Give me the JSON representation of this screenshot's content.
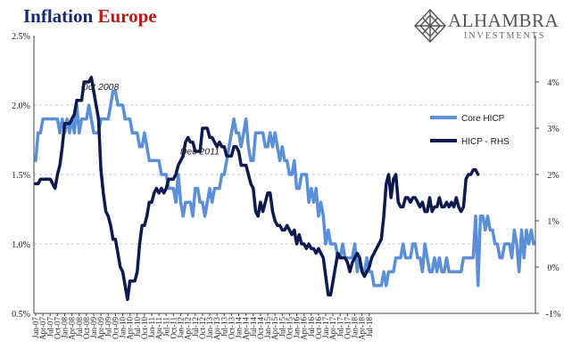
{
  "header": {
    "title_part1": "Inflation",
    "title_part2": "Europe",
    "title_color1": "#1a2a6c",
    "title_color2": "#c01818"
  },
  "logo": {
    "name": "ALHAMBRA",
    "subtitle": "INVESTMENTS",
    "icon": "diamond-lattice-icon"
  },
  "chart_data": {
    "type": "line",
    "title": "Inflation Europe",
    "x_range": [
      "2007-01",
      "2018-09"
    ],
    "x_tick_labels": [
      "Jan-07",
      "Apr-07",
      "Jul-07",
      "Oct-07",
      "Jan-08",
      "Apr-08",
      "Jul-08",
      "Oct-08",
      "Jan-09",
      "Apr-09",
      "Jul-09",
      "Oct-09",
      "Jan-10",
      "Apr-10",
      "Jul-10",
      "Oct-10",
      "Jan-11",
      "Apr-11",
      "Jul-11",
      "Oct-11",
      "Jan-12",
      "Apr-12",
      "Jul-12",
      "Oct-12",
      "Jan-13",
      "Apr-13",
      "Jul-13",
      "Oct-13",
      "Jan-14",
      "Apr-14",
      "Jul-14",
      "Oct-14",
      "Jan-15",
      "Apr-15",
      "Jul-15",
      "Oct-15",
      "Jan-16",
      "Apr-16",
      "Jul-16",
      "Oct-16",
      "Jan-17",
      "Apr-17",
      "Jul-17",
      "Oct-17",
      "Jan-18",
      "Apr-18",
      "Jul-18"
    ],
    "y_left": {
      "min": 0.5,
      "max": 2.5,
      "ticks": [
        "0.5%",
        "1.0%",
        "1.5%",
        "2.0%",
        "2.5%"
      ]
    },
    "y_right": {
      "min": -1,
      "max": 5,
      "ticks": [
        "-1%",
        "0%",
        "1%",
        "2%",
        "3%",
        "4%"
      ]
    },
    "grid": "horizontal dashed",
    "legend_position": "right",
    "annotations": [
      {
        "text": "Oct 2008",
        "x": "2008-07"
      },
      {
        "text": "Dec 2011",
        "x": "2011-12"
      }
    ],
    "series": [
      {
        "name": "Core HICP",
        "axis": "left",
        "color": "#5b8fd8",
        "values": [
          1.6,
          1.8,
          1.8,
          1.9,
          1.9,
          1.9,
          1.9,
          1.9,
          1.9,
          1.9,
          1.8,
          1.9,
          1.8,
          1.9,
          1.8,
          1.9,
          1.8,
          2.0,
          1.8,
          1.9,
          1.9,
          1.9,
          2.0,
          1.9,
          1.8,
          1.8,
          1.8,
          1.9,
          1.9,
          1.9,
          1.9,
          2.0,
          2.1,
          2.1,
          2.0,
          2.0,
          2.0,
          1.9,
          1.9,
          1.9,
          1.8,
          1.8,
          1.8,
          1.7,
          1.7,
          1.8,
          1.7,
          1.6,
          1.6,
          1.6,
          1.6,
          1.6,
          1.5,
          1.5,
          1.5,
          1.4,
          1.4,
          1.4,
          1.3,
          1.5,
          1.3,
          1.2,
          1.3,
          1.3,
          1.3,
          1.2,
          1.4,
          1.4,
          1.3,
          1.3,
          1.2,
          1.3,
          1.4,
          1.3,
          1.4,
          1.4,
          1.4,
          1.5,
          1.5,
          1.6,
          1.7,
          1.8,
          1.9,
          1.8,
          1.8,
          1.7,
          1.8,
          1.9,
          1.7,
          1.6,
          1.6,
          1.8,
          1.8,
          1.8,
          1.8,
          1.7,
          1.7,
          1.8,
          1.7,
          1.8,
          1.7,
          1.6,
          1.7,
          1.6,
          1.6,
          1.5,
          1.5,
          1.6,
          1.4,
          1.4,
          1.5,
          1.5,
          1.5,
          1.3,
          1.4,
          1.3,
          1.4,
          1.2,
          1.3,
          1.2,
          1.0,
          1.1,
          1.0,
          1.0,
          1.0,
          0.9,
          0.9,
          1.0,
          0.9,
          0.9,
          0.9,
          0.9,
          1.0,
          0.8,
          0.9,
          0.8,
          0.8,
          0.9,
          0.8,
          0.8,
          0.7,
          0.7,
          0.7,
          0.7,
          0.8,
          0.7,
          0.8,
          0.8,
          0.8,
          0.9,
          0.9,
          0.9,
          1.0,
          0.9,
          0.9,
          0.9,
          1.0,
          1.0,
          0.9,
          0.9,
          0.8,
          1.0,
          0.9,
          0.8,
          0.8,
          0.9,
          0.8,
          0.9,
          0.8,
          0.8,
          0.9,
          0.8,
          0.8,
          0.8,
          0.8,
          0.8,
          0.8,
          0.9,
          0.9,
          0.9,
          0.9,
          0.9,
          1.2,
          0.7,
          1.2,
          1.2,
          1.1,
          1.2,
          1.1,
          1.1,
          1.0,
          1.0,
          0.9,
          0.9,
          1.0,
          1.0,
          1.0,
          0.9,
          1.1,
          1.0,
          0.8,
          1.1,
          0.9,
          1.1,
          1.0,
          1.1,
          1.0
        ]
      },
      {
        "name": "HICP - RHS",
        "axis": "right",
        "color": "#0e1a4f",
        "values": [
          1.8,
          1.8,
          1.9,
          1.9,
          1.9,
          1.9,
          1.9,
          1.8,
          1.7,
          2.0,
          2.2,
          2.6,
          3.1,
          3.1,
          3.1,
          3.2,
          3.3,
          3.6,
          3.6,
          3.6,
          4.0,
          4.0,
          4.0,
          4.1,
          3.8,
          3.5,
          3.2,
          2.1,
          1.6,
          1.2,
          1.1,
          0.9,
          0.6,
          0.6,
          0.3,
          0.0,
          -0.1,
          -0.4,
          -0.7,
          -0.3,
          -0.3,
          -0.3,
          -0.1,
          0.5,
          0.9,
          0.9,
          1.1,
          1.4,
          1.4,
          1.6,
          1.7,
          1.6,
          1.7,
          1.6,
          1.7,
          1.9,
          1.9,
          1.9,
          2.0,
          2.2,
          2.3,
          2.4,
          2.7,
          2.8,
          2.7,
          2.7,
          2.5,
          2.5,
          2.5,
          3.0,
          3.0,
          3.0,
          2.8,
          2.8,
          2.7,
          2.6,
          2.7,
          2.6,
          2.6,
          2.4,
          2.4,
          2.4,
          2.6,
          2.6,
          2.5,
          2.2,
          2.2,
          2.2,
          2.0,
          1.8,
          1.7,
          1.2,
          1.1,
          1.4,
          1.2,
          1.4,
          1.6,
          1.6,
          1.2,
          1.0,
          0.9,
          0.9,
          0.8,
          0.8,
          0.9,
          0.8,
          0.7,
          0.8,
          0.5,
          0.7,
          0.5,
          0.5,
          0.4,
          0.5,
          0.4,
          0.4,
          0.3,
          0.4,
          0.3,
          0.2,
          -0.2,
          -0.6,
          -0.6,
          -0.3,
          0.0,
          0.3,
          0.2,
          0.2,
          0.2,
          0.1,
          -0.1,
          0.1,
          0.2,
          0.3,
          0.2,
          -0.1,
          -0.2,
          -0.1,
          0.0,
          0.2,
          0.3,
          0.4,
          0.5,
          0.6,
          1.1,
          1.8,
          2.0,
          1.5,
          1.9,
          2.0,
          1.4,
          1.3,
          1.3,
          1.5,
          1.5,
          1.4,
          1.5,
          1.5,
          1.4,
          1.3,
          1.4,
          1.2,
          1.2,
          1.5,
          1.2,
          1.3,
          1.3,
          1.5,
          1.3,
          1.3,
          1.4,
          1.3,
          1.4,
          1.3,
          1.5,
          1.3,
          1.2,
          1.3,
          1.9,
          2.0,
          2.0,
          2.1,
          2.1,
          2.0
        ]
      }
    ]
  }
}
